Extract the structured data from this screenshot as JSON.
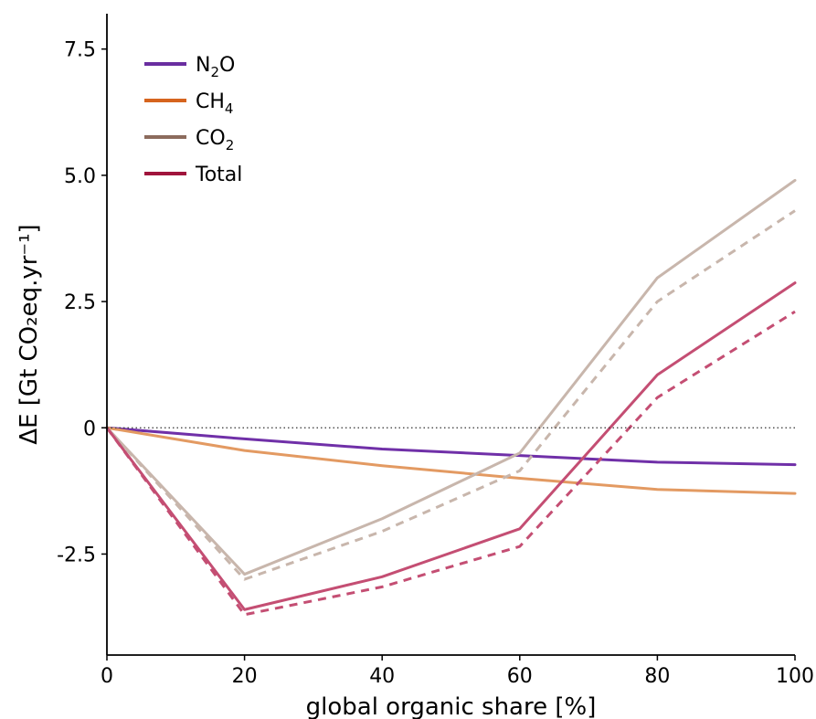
{
  "chart_data": {
    "type": "line",
    "xlabel": "global organic share [%]",
    "ylabel": "ΔE [Gt CO₂eq.yr⁻¹]",
    "x": [
      0,
      20,
      40,
      60,
      80,
      100
    ],
    "xlim": [
      0,
      100
    ],
    "ylim": [
      -4.5,
      8.2
    ],
    "x_ticks": [
      "0",
      "20",
      "40",
      "60",
      "80",
      "100"
    ],
    "y_ticks": [
      {
        "value": 7.5,
        "label": "7.5"
      },
      {
        "value": 5.0,
        "label": "5.0"
      },
      {
        "value": 2.5,
        "label": "2.5"
      },
      {
        "value": 0,
        "label": "0"
      },
      {
        "value": -2.5,
        "label": "-2.5"
      }
    ],
    "zero_line": true,
    "grid": false,
    "legend_position": "top-left",
    "legend": [
      {
        "base": "N",
        "sub": "2",
        "tail": "O",
        "color": "#6a2ea0"
      },
      {
        "base": "CH",
        "sub": "4",
        "tail": "",
        "color": "#d6641e"
      },
      {
        "base": "CO",
        "sub": "2",
        "tail": "",
        "color": "#8c6b5d"
      },
      {
        "base": "Total",
        "sub": "",
        "tail": "",
        "color": "#a0143c"
      }
    ],
    "series": [
      {
        "key": "N2O",
        "style": "solid",
        "color": "#7030a8",
        "values": [
          0,
          -0.22,
          -0.42,
          -0.55,
          -0.68,
          -0.73
        ]
      },
      {
        "key": "CH4",
        "style": "solid",
        "color": "#e39a62",
        "values": [
          0,
          -0.45,
          -0.75,
          -1.0,
          -1.22,
          -1.3
        ]
      },
      {
        "key": "CO2",
        "style": "solid",
        "color": "#c8b6ac",
        "values": [
          0,
          -2.9,
          -1.8,
          -0.5,
          2.97,
          4.9
        ]
      },
      {
        "key": "CO2",
        "style": "dashed",
        "color": "#c8b6ac",
        "values": [
          0,
          -3.0,
          -2.05,
          -0.85,
          2.5,
          4.3
        ]
      },
      {
        "key": "Total",
        "style": "solid",
        "color": "#c44e73",
        "values": [
          0,
          -3.6,
          -2.95,
          -2.0,
          1.05,
          2.87
        ]
      },
      {
        "key": "Total",
        "style": "dashed",
        "color": "#c44e73",
        "values": [
          0,
          -3.7,
          -3.15,
          -2.35,
          0.6,
          2.3
        ]
      }
    ]
  }
}
